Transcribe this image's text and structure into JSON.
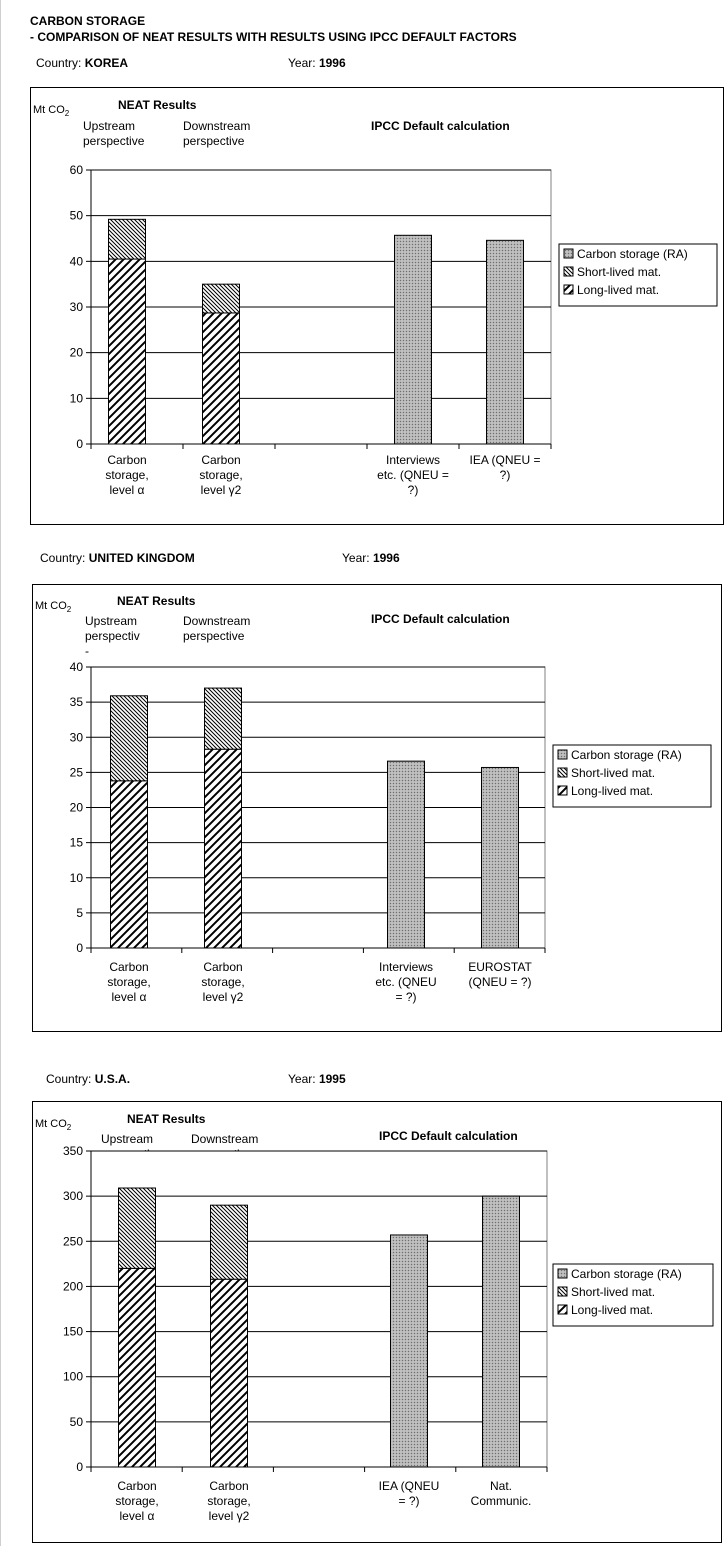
{
  "header": {
    "title": "CARBON STORAGE",
    "subtitle": "- COMPARISON OF NEAT RESULTS WITH RESULTS USING IPCC DEFAULT FACTORS"
  },
  "labels": {
    "country": "Country:",
    "year": "Year:",
    "unit": "Mt CO",
    "unit_sub": "2",
    "neat": "NEAT Results",
    "upstream": [
      "Upstream",
      "perspective"
    ],
    "upstream_trunc": [
      "Upstream",
      "perspectiv",
      "-"
    ],
    "downstream": [
      "Downstream",
      "perspective"
    ],
    "ipcc": "IPCC Default calculation"
  },
  "legend": [
    "Carbon storage (RA)",
    "Short-lived mat.",
    "Long-lived mat."
  ],
  "chart_data": [
    {
      "type": "bar",
      "country": "KOREA",
      "year": "1996",
      "ylim": [
        0,
        60
      ],
      "yticks": [
        0,
        10,
        20,
        30,
        40,
        50,
        60
      ],
      "categories": [
        [
          "Carbon",
          "storage,",
          "level α"
        ],
        [
          "Carbon",
          "storage,",
          "level γ2"
        ],
        [],
        [
          "Interviews",
          "etc. (QNEU =",
          "?)"
        ],
        [
          "IEA (QNEU =",
          "?)"
        ]
      ],
      "series": [
        {
          "name": "Long-lived mat.",
          "values": [
            40.5,
            28.7,
            null,
            null,
            null
          ]
        },
        {
          "name": "Short-lived mat.",
          "values": [
            8.7,
            6.3,
            null,
            null,
            null
          ]
        },
        {
          "name": "Carbon storage (RA)",
          "values": [
            null,
            null,
            null,
            45.7,
            44.6
          ]
        }
      ]
    },
    {
      "type": "bar",
      "country": "UNITED KINGDOM",
      "year": "1996",
      "ylim": [
        0,
        40
      ],
      "yticks": [
        0,
        5,
        10,
        15,
        20,
        25,
        30,
        35,
        40
      ],
      "categories": [
        [
          "Carbon",
          "storage,",
          "level α"
        ],
        [
          "Carbon",
          "storage,",
          "level γ2"
        ],
        [],
        [
          "Interviews",
          "etc. (QNEU",
          "= ?)"
        ],
        [
          "EUROSTAT",
          "(QNEU = ?)"
        ]
      ],
      "series": [
        {
          "name": "Long-lived mat.",
          "values": [
            23.8,
            28.3,
            null,
            null,
            null
          ]
        },
        {
          "name": "Short-lived mat.",
          "values": [
            12.1,
            8.7,
            null,
            null,
            null
          ]
        },
        {
          "name": "Carbon storage (RA)",
          "values": [
            null,
            null,
            null,
            26.6,
            25.7
          ]
        }
      ]
    },
    {
      "type": "bar",
      "country": "U.S.A.",
      "year": "1995",
      "ylim": [
        0,
        350
      ],
      "yticks": [
        0,
        50,
        100,
        150,
        200,
        250,
        300,
        350
      ],
      "categories": [
        [
          "Carbon",
          "storage,",
          "level α"
        ],
        [
          "Carbon",
          "storage,",
          "level γ2"
        ],
        [],
        [
          "IEA (QNEU",
          "= ?)"
        ],
        [
          "Nat.",
          "Communic."
        ]
      ],
      "series": [
        {
          "name": "Long-lived mat.",
          "values": [
            220,
            208,
            null,
            null,
            null
          ]
        },
        {
          "name": "Short-lived mat.",
          "values": [
            89,
            82,
            null,
            null,
            null
          ]
        },
        {
          "name": "Carbon storage (RA)",
          "values": [
            null,
            null,
            null,
            257,
            300
          ]
        }
      ]
    }
  ]
}
